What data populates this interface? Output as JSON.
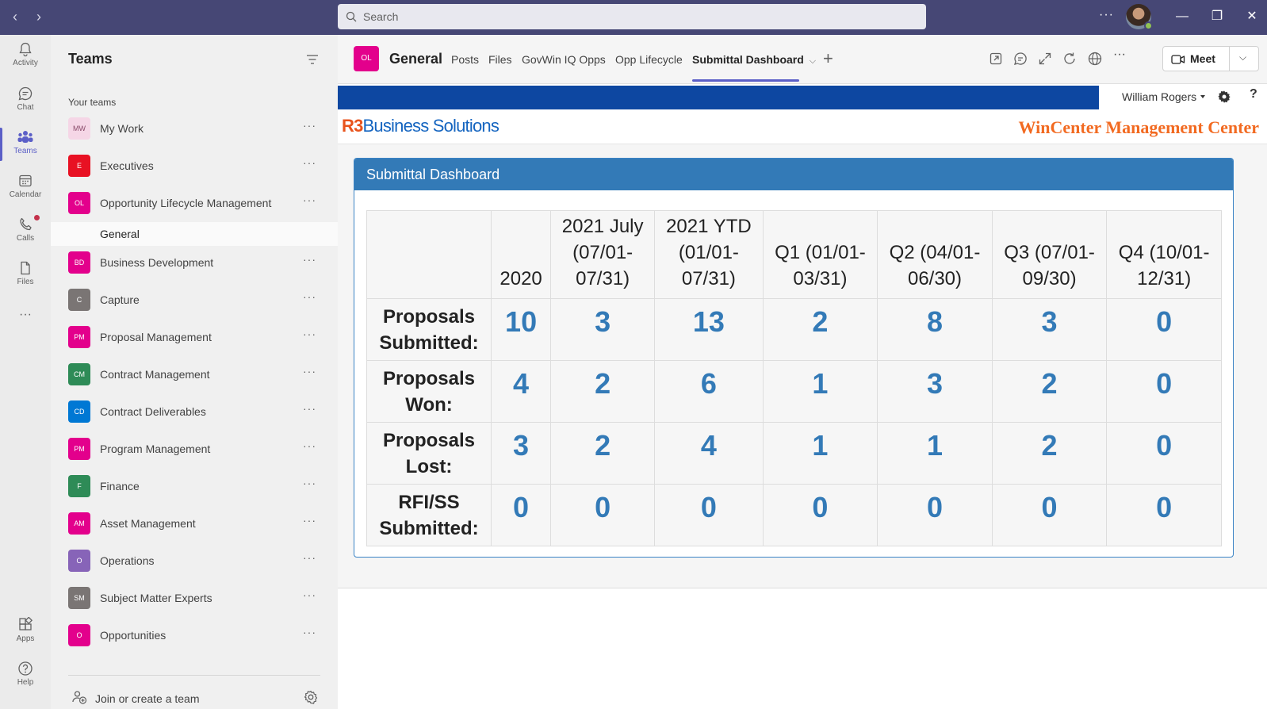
{
  "titlebar": {
    "search_placeholder": "Search",
    "more": "···"
  },
  "rail": {
    "items": [
      {
        "label": "Activity",
        "icon": "bell-icon"
      },
      {
        "label": "Chat",
        "icon": "chat-icon"
      },
      {
        "label": "Teams",
        "icon": "teams-icon"
      },
      {
        "label": "Calendar",
        "icon": "calendar-icon"
      },
      {
        "label": "Calls",
        "icon": "phone-icon"
      },
      {
        "label": "Files",
        "icon": "file-icon"
      }
    ],
    "more": "···",
    "bottom": [
      {
        "label": "Apps",
        "icon": "apps-icon"
      },
      {
        "label": "Help",
        "icon": "help-icon"
      }
    ]
  },
  "teams_panel": {
    "title": "Teams",
    "section_label": "Your teams",
    "teams": [
      {
        "badge": "MW",
        "name": "My Work",
        "color": "#f5d6e6",
        "text_color": "#8a4a6a"
      },
      {
        "badge": "E",
        "name": "Executives",
        "color": "#e81123"
      },
      {
        "badge": "OL",
        "name": "Opportunity Lifecycle Management",
        "color": "#e3008c"
      },
      {
        "badge": "BD",
        "name": "Business Development",
        "color": "#e3008c"
      },
      {
        "badge": "C",
        "name": "Capture",
        "color": "#7a7574"
      },
      {
        "badge": "PM",
        "name": "Proposal Management",
        "color": "#e3008c"
      },
      {
        "badge": "CM",
        "name": "Contract Management",
        "color": "#2e8b57"
      },
      {
        "badge": "CD",
        "name": "Contract Deliverables",
        "color": "#0078d4"
      },
      {
        "badge": "PM",
        "name": "Program Management",
        "color": "#e3008c"
      },
      {
        "badge": "F",
        "name": "Finance",
        "color": "#2e8b57"
      },
      {
        "badge": "AM",
        "name": "Asset Management",
        "color": "#e3008c"
      },
      {
        "badge": "O",
        "name": "Operations",
        "color": "#8764b8"
      },
      {
        "badge": "SM",
        "name": "Subject Matter Experts",
        "color": "#7a7574"
      },
      {
        "badge": "O",
        "name": "Opportunities",
        "color": "#e3008c"
      }
    ],
    "active_channel": "General",
    "more": "···",
    "join_label": "Join or create a team"
  },
  "channel": {
    "badge": "OL",
    "title": "General",
    "tabs": [
      "Posts",
      "Files",
      "GovWin IQ Opps",
      "Opp Lifecycle",
      "Submittal Dashboard"
    ],
    "active_tab": "Submittal Dashboard",
    "plus": "+",
    "more": "···",
    "meet_label": "Meet"
  },
  "app": {
    "user_name": "William Rogers",
    "help": "?",
    "logo_r3": "R3",
    "logo_text": "Business Solutions",
    "center_title": "WinCenter Management Center",
    "accent_color": "#337ab7",
    "brand_orange": "#f26a21"
  },
  "dashboard": {
    "title": "Submittal Dashboard",
    "columns": [
      [
        "2020"
      ],
      [
        "2021 July",
        "(07/01-",
        "07/31)"
      ],
      [
        "2021 YTD",
        "(01/01-",
        "07/31)"
      ],
      [
        "Q1 (01/01-",
        "03/31)"
      ],
      [
        "Q2 (04/01-",
        "06/30)"
      ],
      [
        "Q3 (07/01-",
        "09/30)"
      ],
      [
        "Q4 (10/01-",
        "12/31)"
      ]
    ],
    "rows": [
      {
        "label": [
          "Proposals",
          "Submitted:"
        ],
        "values": [
          "10",
          "3",
          "13",
          "2",
          "8",
          "3",
          "0"
        ]
      },
      {
        "label": [
          "Proposals",
          "Won:"
        ],
        "values": [
          "4",
          "2",
          "6",
          "1",
          "3",
          "2",
          "0"
        ]
      },
      {
        "label": [
          "Proposals",
          "Lost:"
        ],
        "values": [
          "3",
          "2",
          "4",
          "1",
          "1",
          "2",
          "0"
        ]
      },
      {
        "label": [
          "RFI/SS",
          "Submitted:"
        ],
        "values": [
          "0",
          "0",
          "0",
          "0",
          "0",
          "0",
          "0"
        ]
      }
    ]
  }
}
